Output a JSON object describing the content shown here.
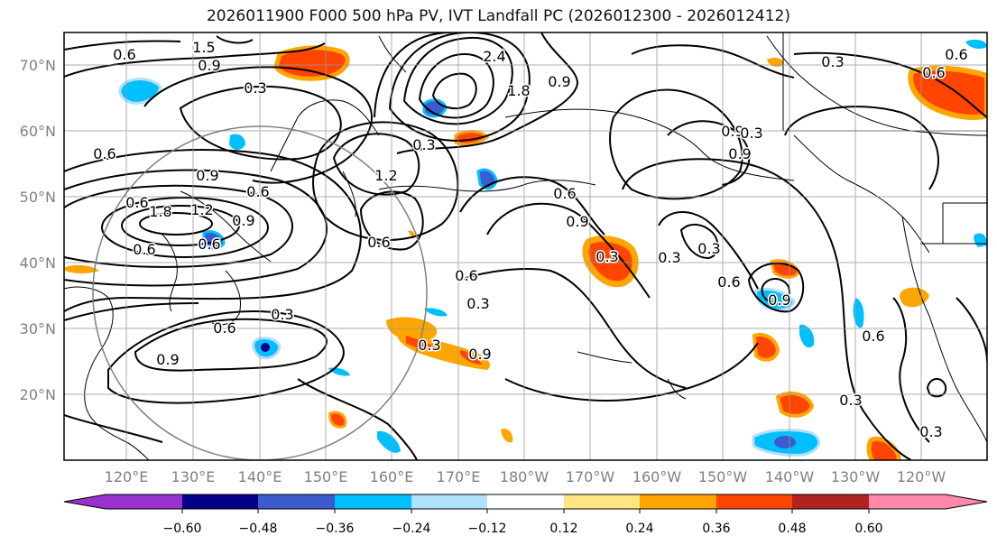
{
  "title": "2026011900 F000 500 hPa PV, IVT Landfall PC (2026012300 - 2026012412)",
  "map": {
    "lat_labels": [
      "70°N",
      "60°N",
      "50°N",
      "40°N",
      "30°N",
      "20°N"
    ],
    "lon_labels": [
      "120°E",
      "130°E",
      "140°E",
      "150°E",
      "160°E",
      "170°E",
      "180°W",
      "170°W",
      "160°W",
      "150°W",
      "140°W",
      "130°W",
      "120°W"
    ],
    "contour_labels": [
      "1.5",
      "0.6",
      "0.9",
      "0.3",
      "2.4",
      "1.8",
      "0.9",
      "0.3",
      "0.6",
      "0.6",
      "0.6",
      "0.9",
      "0.6",
      "1.8",
      "1.2",
      "0.6",
      "0.6",
      "0.9",
      "1.2",
      "0.6",
      "0.3",
      "0.6",
      "0.3",
      "0.6",
      "0.9",
      "0.3",
      "0.3",
      "0.3",
      "0.6",
      "0.9",
      "0.9",
      "0.9",
      "0.3",
      "0.6",
      "0.9",
      "0.3",
      "0.9",
      "0.3",
      "0.6",
      "0.3",
      "0.3",
      "0.3",
      "0.6"
    ]
  },
  "colorbar": {
    "colors": [
      "#9932cc",
      "#00008b",
      "#3b5bcf",
      "#00bfff",
      "#b0e0fa",
      "#ffffff",
      "#ffe680",
      "#ffa500",
      "#ff4500",
      "#b22222",
      "#ff88aa"
    ],
    "tick_labels": [
      "−0.60",
      "−0.48",
      "−0.36",
      "−0.24",
      "−0.12",
      "0.12",
      "0.24",
      "0.36",
      "0.48",
      "0.60"
    ]
  }
}
